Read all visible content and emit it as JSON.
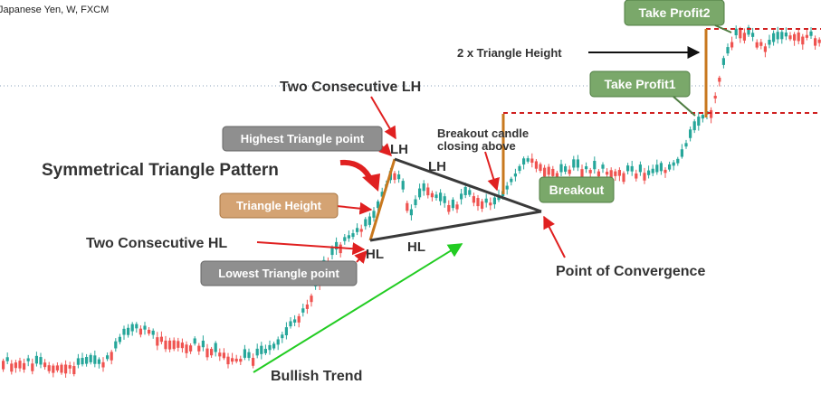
{
  "header": {
    "symbol_text": "Japanese Yen, W, FXCM"
  },
  "chart_data": {
    "type": "candlestick",
    "title": "Symmetrical Triangle Pattern",
    "colors": {
      "bull": "#26a69a",
      "bear": "#ef5350",
      "accent_red": "#e02020",
      "green": "#22cc22",
      "orange": "#c8781e"
    },
    "annotations": {
      "title": "Symmetrical Triangle Pattern",
      "two_lh": "Two Consecutive LH",
      "two_hl": "Two Consecutive HL",
      "highest_point": "Highest Triangle point",
      "lowest_point": "Lowest Triangle point",
      "triangle_height": "Triangle Height",
      "lh1": "LH",
      "lh2": "LH",
      "hl1": "HL",
      "hl2": "HL",
      "breakout_candle_1": "Breakout candle",
      "breakout_candle_2": "closing above",
      "breakout": "Breakout",
      "point_of_convergence": "Point of Convergence",
      "bullish_trend": "Bullish Trend",
      "take_profit1": "Take Profit1",
      "take_profit2": "Take Profit2",
      "two_x_height": "2 x Triangle Height"
    }
  }
}
